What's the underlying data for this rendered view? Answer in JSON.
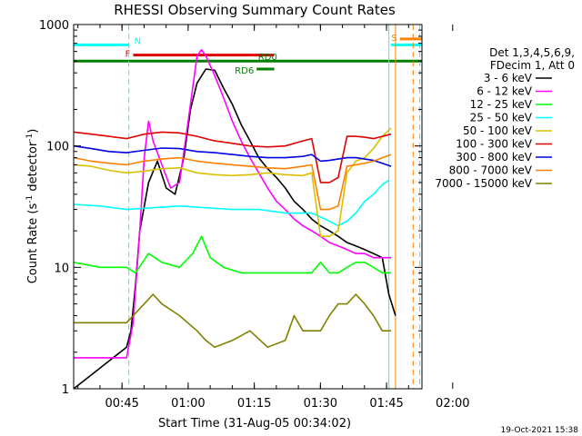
{
  "chart_data": {
    "type": "line",
    "title": "RHESSI Observing Summary Count Rates",
    "xlabel": "Start Time (31-Aug-05 00:34:02)",
    "ylabel_main": "Count Rate (s",
    "ylabel_sup1": "-1",
    "ylabel_mid": " detector",
    "ylabel_sup2": "-1",
    "ylabel_end": ")",
    "y_scale": "log",
    "ylim": [
      1,
      1000
    ],
    "xlim_minutes": [
      0,
      79
    ],
    "x_ticks": [
      {
        "label": "00:45",
        "minute": 10.97
      },
      {
        "label": "01:00",
        "minute": 25.97
      },
      {
        "label": "01:15",
        "minute": 40.97
      },
      {
        "label": "01:30",
        "minute": 55.97
      },
      {
        "label": "01:45",
        "minute": 70.97
      },
      {
        "label": "02:00",
        "minute": 85.97
      }
    ],
    "y_ticks": [
      {
        "label": "1",
        "value": 1
      },
      {
        "label": "10",
        "value": 10
      },
      {
        "label": "100",
        "value": 100
      },
      {
        "label": "1000",
        "value": 1000
      }
    ],
    "legend_header": [
      "Det 1,3,4,5,6,9,",
      "FDecim 1, Att 0"
    ],
    "legend_position": "right",
    "series": [
      {
        "name": "3 - 6 keV",
        "color": "#000000",
        "x": [
          0,
          12,
          13,
          14,
          15,
          17,
          19,
          21,
          23,
          25,
          26.5,
          28,
          30,
          32,
          34,
          36,
          38,
          40,
          42,
          44,
          46,
          48,
          50,
          52,
          54,
          56,
          58,
          60,
          62,
          64,
          66,
          68,
          70,
          71.5,
          73
        ],
        "y": [
          1,
          2.2,
          3,
          7,
          20,
          50,
          75,
          45,
          40,
          80,
          200,
          330,
          430,
          420,
          300,
          220,
          150,
          110,
          80,
          65,
          55,
          45,
          35,
          30,
          25,
          22,
          20,
          18,
          16,
          15,
          14,
          13,
          12,
          6,
          4
        ]
      },
      {
        "name": "6 - 12 keV",
        "color": "#ff00ff",
        "x": [
          0,
          12,
          13.5,
          15,
          16,
          17,
          18,
          20,
          22,
          24,
          25.5,
          27,
          28,
          29,
          30,
          32,
          34,
          36,
          38,
          40,
          42,
          44,
          46,
          48,
          50,
          52,
          54,
          56,
          58,
          60,
          62,
          64,
          66,
          68,
          70,
          72
        ],
        "y": [
          1.8,
          1.8,
          3.5,
          20,
          80,
          160,
          110,
          70,
          45,
          50,
          120,
          300,
          550,
          620,
          550,
          380,
          250,
          160,
          110,
          80,
          60,
          45,
          35,
          30,
          25,
          22,
          20,
          18,
          16,
          15,
          14,
          13,
          13,
          12,
          12,
          12
        ]
      },
      {
        "name": "12 - 25 keV",
        "color": "#00ff00",
        "x": [
          0,
          6,
          12,
          14,
          17,
          20,
          24,
          27,
          29,
          31,
          34,
          38,
          42,
          46,
          50,
          54,
          56,
          58,
          60,
          62,
          64,
          66,
          68,
          70,
          72
        ],
        "y": [
          11,
          10,
          10,
          9,
          13,
          11,
          10,
          13,
          18,
          12,
          10,
          9,
          9,
          9,
          9,
          9,
          11,
          9,
          9,
          10,
          11,
          11,
          10,
          9,
          9
        ]
      },
      {
        "name": "25 - 50 keV",
        "color": "#00ffff",
        "x": [
          0,
          6,
          12,
          18,
          24,
          30,
          36,
          42,
          48,
          54,
          56,
          58,
          60,
          62,
          64,
          66,
          68,
          70,
          71.5
        ],
        "y": [
          33,
          32,
          30,
          31,
          32,
          31,
          30,
          30,
          28,
          28,
          26,
          24,
          22,
          24,
          28,
          35,
          40,
          48,
          52
        ]
      },
      {
        "name": "50 - 100 keV",
        "color": "#d8c000",
        "x": [
          0,
          4,
          8,
          12,
          16,
          20,
          24,
          28,
          32,
          36,
          40,
          44,
          48,
          52,
          54,
          56,
          58,
          60,
          62,
          64,
          66,
          68,
          70,
          72
        ],
        "y": [
          70,
          68,
          63,
          60,
          62,
          65,
          66,
          60,
          58,
          57,
          58,
          60,
          58,
          57,
          60,
          18,
          18,
          20,
          60,
          75,
          80,
          95,
          120,
          140
        ]
      },
      {
        "name": "100 - 300 keV",
        "color": "#e00000",
        "x": [
          0,
          4,
          8,
          12,
          16,
          20,
          24,
          28,
          32,
          36,
          40,
          44,
          48,
          52,
          54,
          56,
          58,
          60,
          62,
          64,
          66,
          68,
          70,
          72
        ],
        "y": [
          130,
          125,
          120,
          115,
          125,
          130,
          128,
          120,
          110,
          105,
          100,
          98,
          100,
          110,
          115,
          50,
          50,
          55,
          120,
          120,
          118,
          115,
          120,
          125
        ]
      },
      {
        "name": "300 - 800 keV",
        "color": "#0000e0",
        "x": [
          0,
          4,
          8,
          12,
          16,
          20,
          24,
          28,
          32,
          36,
          40,
          44,
          48,
          52,
          54,
          56,
          58,
          60,
          62,
          64,
          66,
          68,
          70,
          72
        ],
        "y": [
          100,
          95,
          90,
          88,
          92,
          96,
          95,
          90,
          88,
          85,
          82,
          80,
          80,
          82,
          85,
          75,
          76,
          78,
          80,
          80,
          78,
          76,
          72,
          68
        ]
      },
      {
        "name": "800 - 7000 keV",
        "color": "#ff8000",
        "x": [
          0,
          4,
          8,
          12,
          16,
          20,
          24,
          28,
          32,
          36,
          40,
          44,
          48,
          52,
          54,
          56,
          58,
          60,
          62,
          64,
          66,
          68,
          70,
          72
        ],
        "y": [
          80,
          75,
          72,
          70,
          75,
          78,
          80,
          75,
          72,
          70,
          68,
          66,
          65,
          68,
          70,
          30,
          30,
          32,
          68,
          70,
          72,
          75,
          80,
          85
        ]
      },
      {
        "name": "7000 - 15000 keV",
        "color": "#808000",
        "x": [
          0,
          6,
          12,
          16,
          18,
          20,
          24,
          28,
          30,
          32,
          36,
          40,
          44,
          48,
          50,
          52,
          54,
          56,
          58,
          60,
          62,
          64,
          66,
          68,
          70,
          72
        ],
        "y": [
          3.5,
          3.5,
          3.5,
          5,
          6,
          5,
          4,
          3,
          2.5,
          2.2,
          2.5,
          3,
          2.2,
          2.5,
          4,
          3,
          3,
          3,
          4,
          5,
          5,
          6,
          5,
          4,
          3,
          3
        ]
      }
    ],
    "bar_annotations": [
      {
        "label": "N",
        "color": "#00ffff",
        "x_start": 0,
        "x_end": 12.5,
        "y": 680
      },
      {
        "label": "F",
        "color": "#e00000",
        "x_start": 13.5,
        "x_end": 45.5,
        "y": 560
      },
      {
        "label": "RD0",
        "color": "#008000",
        "x_start": 0,
        "x_end": 79,
        "y": 500
      },
      {
        "label": "RD6",
        "color": "#008000",
        "x_start": 41.5,
        "x_end": 45.5,
        "y": 430
      },
      {
        "label": "S",
        "color": "#ff8000",
        "x_start": 74,
        "x_end": 79,
        "y": 760
      },
      {
        "label": "",
        "color": "#00ffff",
        "x_start": 72,
        "x_end": 79,
        "y": 680
      }
    ],
    "vertical_markers": [
      {
        "minute": 12.5,
        "color": "#00ffff",
        "style": "dashed"
      },
      {
        "minute": 71.5,
        "color": "#00ffff",
        "style": "solid"
      },
      {
        "minute": 73.0,
        "color": "#ff8000",
        "style": "solid"
      },
      {
        "minute": 77.0,
        "color": "#ff8000",
        "style": "dashed"
      },
      {
        "minute": 78.5,
        "color": "#00ffff",
        "style": "dashed"
      }
    ]
  },
  "footer_timestamp": "19-Oct-2021 15:38"
}
